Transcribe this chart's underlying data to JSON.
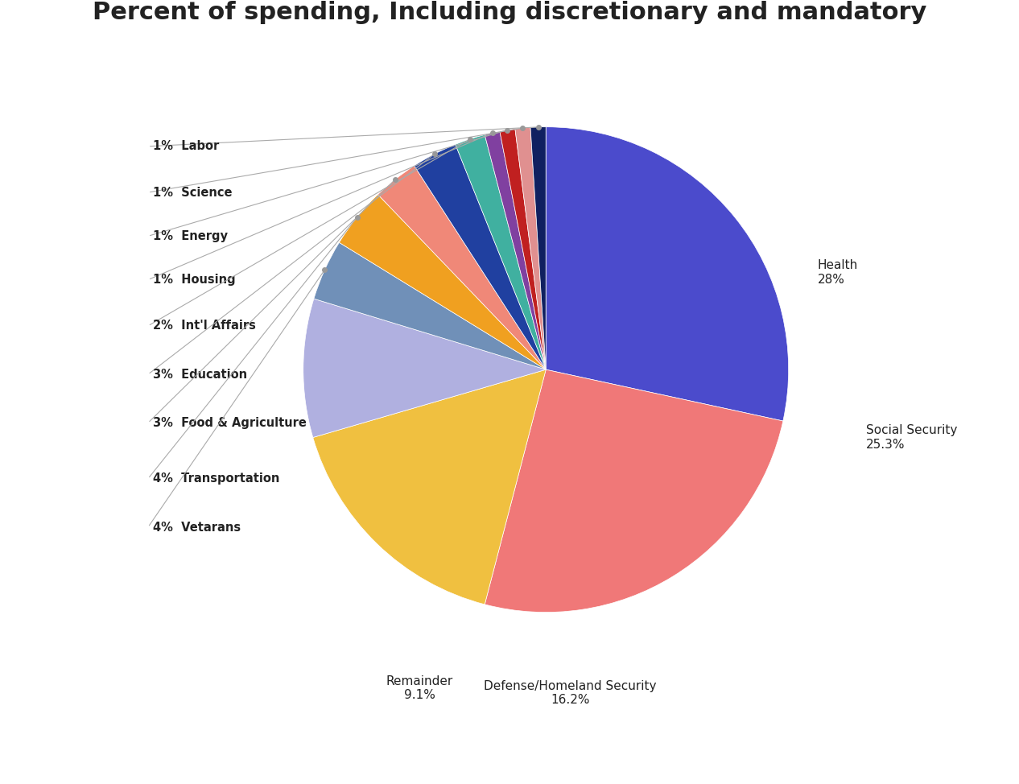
{
  "title": "Percent of spending, Including discretionary and mandatory",
  "slices": [
    {
      "label": "Health",
      "pct": 28.0,
      "color": "#4b4bcc"
    },
    {
      "label": "Social Security",
      "pct": 25.3,
      "color": "#f07878"
    },
    {
      "label": "Defense/Homeland Security",
      "pct": 16.2,
      "color": "#f0c040"
    },
    {
      "label": "Remainder",
      "pct": 9.1,
      "color": "#b0b0e0"
    },
    {
      "label": "Vetarans",
      "pct": 4.0,
      "color": "#7090b8"
    },
    {
      "label": "Transportation",
      "pct": 4.0,
      "color": "#f0a020"
    },
    {
      "label": "Food & Agriculture",
      "pct": 3.0,
      "color": "#f08878"
    },
    {
      "label": "Education",
      "pct": 3.0,
      "color": "#2040a0"
    },
    {
      "label": "Int'l Affairs",
      "pct": 2.0,
      "color": "#40b0a0"
    },
    {
      "label": "Housing",
      "pct": 1.0,
      "color": "#8040a0"
    },
    {
      "label": "Energy",
      "pct": 1.0,
      "color": "#c02020"
    },
    {
      "label": "Science",
      "pct": 1.0,
      "color": "#e09090"
    },
    {
      "label": "Labor",
      "pct": 1.0,
      "color": "#102060"
    }
  ],
  "left_labels_info": [
    {
      "label": "Labor",
      "pct_str": "1%"
    },
    {
      "label": "Science",
      "pct_str": "1%"
    },
    {
      "label": "Energy",
      "pct_str": "1%"
    },
    {
      "label": "Housing",
      "pct_str": "1%"
    },
    {
      "label": "Int'l Affairs",
      "pct_str": "2%"
    },
    {
      "label": "Education",
      "pct_str": "3%"
    },
    {
      "label": "Food & Agriculture",
      "pct_str": "3%"
    },
    {
      "label": "Transportation",
      "pct_str": "4%"
    },
    {
      "label": "Vetarans",
      "pct_str": "4%"
    }
  ],
  "label_y_positions": [
    0.92,
    0.73,
    0.55,
    0.37,
    0.18,
    -0.02,
    -0.22,
    -0.45,
    -0.65
  ],
  "background_color": "#ffffff",
  "title_fontsize": 22
}
